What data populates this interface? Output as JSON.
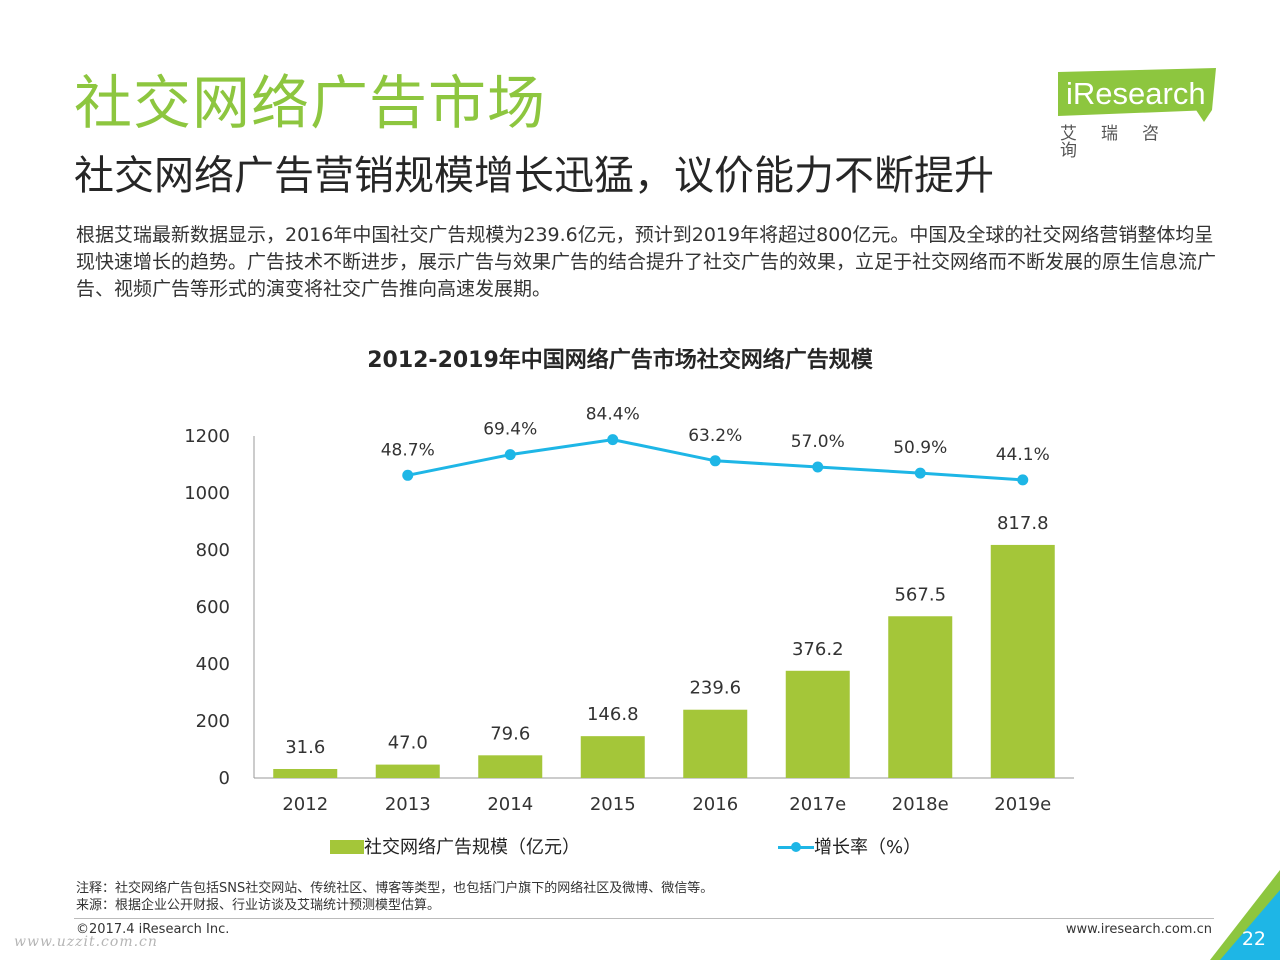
{
  "header": {
    "title": "社交网络广告市场",
    "subtitle": "社交网络广告营销规模增长迅猛，议价能力不断提升",
    "description": "根据艾瑞最新数据显示，2016年中国社交广告规模为239.6亿元，预计到2019年将超过800亿元。中国及全球的社交网络营销整体均呈现快速增长的趋势。广告技术不断进步，展示广告与效果广告的结合提升了社交广告的效果，立足于社交网络而不断发展的原生信息流广告、视频广告等形式的演变将社交广告推向高速发展期。"
  },
  "logo": {
    "text": "iResearch",
    "cn": "艾瑞咨询"
  },
  "chart_data": {
    "type": "bar",
    "title": "2012-2019年中国网络广告市场社交网络广告规模",
    "categories": [
      "2012",
      "2013",
      "2014",
      "2015",
      "2016",
      "2017e",
      "2018e",
      "2019e"
    ],
    "series": [
      {
        "name": "社交网络广告规模（亿元）",
        "type": "bar",
        "values": [
          31.6,
          47.0,
          79.6,
          146.8,
          239.6,
          376.2,
          567.5,
          817.8
        ],
        "labels": [
          "31.6",
          "47.0",
          "79.6",
          "146.8",
          "239.6",
          "376.2",
          "567.5",
          "817.8"
        ]
      },
      {
        "name": "增长率（%）",
        "type": "line",
        "values": [
          null,
          48.7,
          69.4,
          84.4,
          63.2,
          57.0,
          50.9,
          44.1
        ],
        "labels": [
          "",
          "48.7%",
          "69.4%",
          "84.4%",
          "63.2%",
          "57.0%",
          "50.9%",
          "44.1%"
        ]
      }
    ],
    "y_ticks": [
      "0",
      "200",
      "400",
      "600",
      "800",
      "1000",
      "1200"
    ],
    "ylim": [
      0,
      1200
    ],
    "xlabel": "",
    "ylabel": "",
    "grid": false,
    "legend_position": "bottom",
    "colors": {
      "bar": "#a4c639",
      "line": "#1eb6e6"
    }
  },
  "notes": {
    "note": "注释：社交网络广告包括SNS社交网站、传统社区、博客等类型，也包括门户旗下的网络社区及微博、微信等。",
    "source": "来源：根据企业公开财报、行业访谈及艾瑞统计预测模型估算。"
  },
  "footer": {
    "copyright": "©2017.4 iResearch Inc.",
    "site": "www.iresearch.com.cn",
    "page": "22",
    "watermark": "www.uzzit.com.cn"
  }
}
